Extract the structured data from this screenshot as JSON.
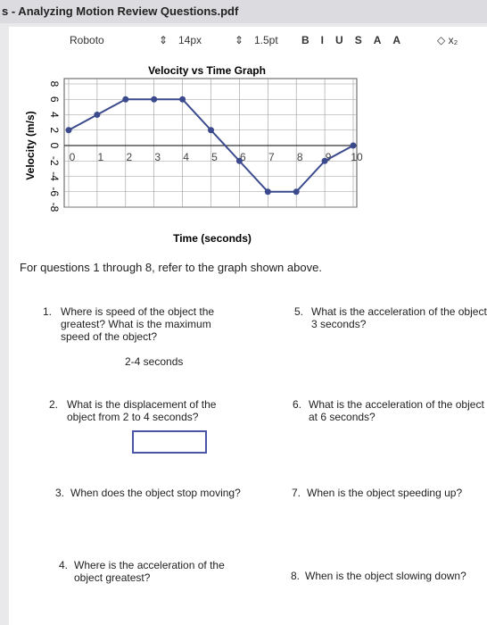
{
  "header": {
    "title": "s - Analyzing Motion Review Questions.pdf"
  },
  "toolbar": {
    "font": "Roboto",
    "size": "14px",
    "line": "1.5pt",
    "buttons": [
      "B",
      "I",
      "U",
      "S",
      "A",
      "A"
    ]
  },
  "chart": {
    "type": "line",
    "title": "Velocity vs Time Graph",
    "x_label": "Time (seconds)",
    "y_label": "Velocity (m/s)",
    "x": [
      0,
      1,
      2,
      3,
      4,
      5,
      6,
      7,
      8,
      9,
      10
    ],
    "series": [
      {
        "name": "velocity",
        "color": "#3a4a8c",
        "values": [
          2,
          4,
          6,
          6,
          6,
          2,
          -2,
          -6,
          -6,
          -2,
          0
        ]
      }
    ],
    "xlim": [
      0,
      10
    ],
    "ylim": [
      -8,
      8
    ],
    "xticks": [
      0,
      1,
      2,
      3,
      4,
      5,
      6,
      7,
      8,
      9,
      10
    ],
    "yticks": [
      8,
      6,
      4,
      2,
      0,
      -2,
      -4,
      -6,
      -8
    ],
    "grid": true
  },
  "intro": "For questions 1 through 8, refer to the graph shown above.",
  "questions": [
    {
      "number": "1.",
      "text": "Where is speed of the object the greatest? What is the maximum speed of the object?",
      "answer": "2-4 seconds"
    },
    {
      "number": "2.",
      "text": "What is the displacement of the object from 2 to 4 seconds?"
    },
    {
      "number": "3.",
      "text": "When does the object stop moving?"
    },
    {
      "number": "4.",
      "text": "Where is the acceleration of the object greatest?"
    },
    {
      "number": "5.",
      "text": "What is the acceleration of the object at 3 seconds?"
    },
    {
      "number": "6.",
      "text": "What is the acceleration of the object at 6 seconds?"
    },
    {
      "number": "7.",
      "text": "When is the object speeding up?"
    },
    {
      "number": "8.",
      "text": "When is the object slowing down?"
    }
  ]
}
